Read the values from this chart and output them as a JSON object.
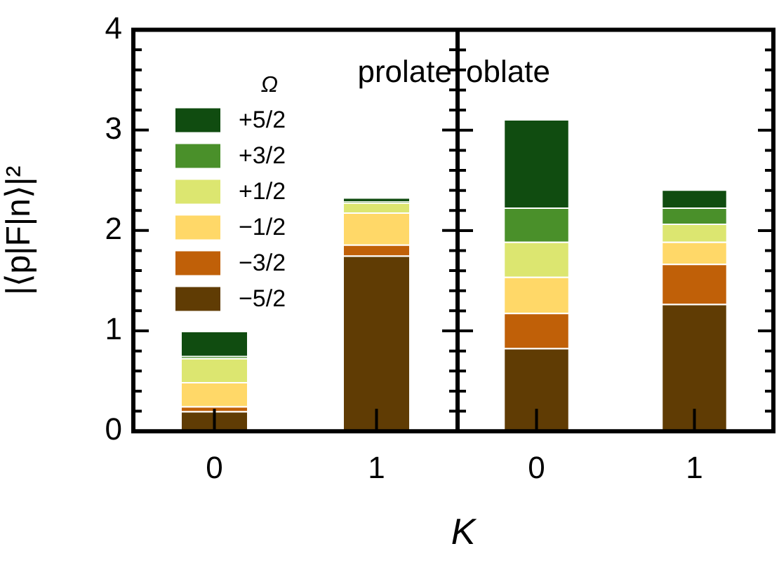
{
  "chart_data": [
    {
      "type": "bar",
      "title": "prolate",
      "xlabel": "K",
      "ylabel": "|⟨p|F|n⟩|²",
      "stacked": true,
      "categories": [
        "0",
        "1"
      ],
      "ylim": [
        0,
        4
      ],
      "yticks": [
        0,
        {
          "value": 0.2,
          "label": null
        },
        {
          "value": 0.4,
          "label": null
        },
        {
          "value": 0.6,
          "label": null
        },
        {
          "value": 0.8,
          "label": null
        },
        1,
        {
          "value": 1.2,
          "label": null
        },
        {
          "value": 1.4,
          "label": null
        },
        {
          "value": 1.6,
          "label": null
        },
        {
          "value": 1.8,
          "label": null
        },
        2,
        {
          "value": 2.2,
          "label": null
        },
        {
          "value": 2.4,
          "label": null
        },
        {
          "value": 2.6,
          "label": null
        },
        {
          "value": 2.8,
          "label": null
        },
        3,
        {
          "value": 3.2,
          "label": null
        },
        {
          "value": 3.4,
          "label": null
        },
        {
          "value": 3.6,
          "label": null
        },
        {
          "value": 3.8,
          "label": null
        },
        4
      ],
      "grid": false,
      "legend": "left",
      "legend_title": "Ω",
      "series": [
        {
          "name": "−5/2",
          "color": "#603c04",
          "values": [
            0.2,
            1.75
          ]
        },
        {
          "name": "−3/2",
          "color": "#c06008",
          "values": [
            0.05,
            0.11
          ]
        },
        {
          "name": "−1/2",
          "color": "#ffd868",
          "values": [
            0.24,
            0.32
          ]
        },
        {
          "name": "+1/2",
          "color": "#dce670",
          "values": [
            0.24,
            0.1
          ]
        },
        {
          "name": "+3/2",
          "color": "#4a902a",
          "values": [
            0.02,
            0.01
          ]
        },
        {
          "name": "+5/2",
          "color": "#104c10",
          "values": [
            0.25,
            0.04
          ]
        }
      ]
    },
    {
      "type": "bar",
      "title": "oblate",
      "stacked": true,
      "categories": [
        "0",
        "1"
      ],
      "ylim": [
        0,
        4
      ],
      "yticks": [
        0,
        {
          "value": 0.2,
          "label": null
        },
        {
          "value": 0.4,
          "label": null
        },
        {
          "value": 0.6,
          "label": null
        },
        {
          "value": 0.8,
          "label": null
        },
        1,
        {
          "value": 1.2,
          "label": null
        },
        {
          "value": 1.4,
          "label": null
        },
        {
          "value": 1.6,
          "label": null
        },
        {
          "value": 1.8,
          "label": null
        },
        2,
        {
          "value": 2.2,
          "label": null
        },
        {
          "value": 2.4,
          "label": null
        },
        {
          "value": 2.6,
          "label": null
        },
        {
          "value": 2.8,
          "label": null
        },
        3,
        {
          "value": 3.2,
          "label": null
        },
        {
          "value": 3.4,
          "label": null
        },
        {
          "value": 3.6,
          "label": null
        },
        {
          "value": 3.8,
          "label": null
        },
        4
      ],
      "grid": false,
      "tick_labels": "x",
      "series": [
        {
          "color": "#603c04",
          "values": [
            0.83,
            1.27
          ]
        },
        {
          "color": "#c06008",
          "values": [
            0.35,
            0.4
          ]
        },
        {
          "color": "#ffd868",
          "values": [
            0.36,
            0.22
          ]
        },
        {
          "color": "#dce670",
          "values": [
            0.35,
            0.18
          ]
        },
        {
          "color": "#4a902a",
          "values": [
            0.34,
            0.16
          ]
        },
        {
          "color": "#104c10",
          "values": [
            0.88,
            0.18
          ]
        }
      ]
    }
  ]
}
